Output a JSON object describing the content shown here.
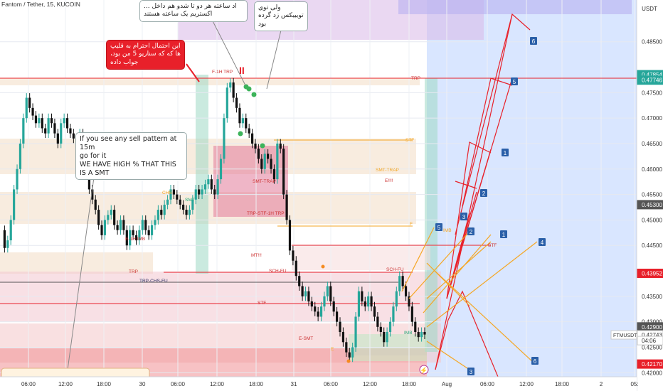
{
  "symbol_label": "Fantom / Tether, 15, KUCOIN",
  "callouts": {
    "top_left_partial": "... اد ساعته  هر دو تا شدو هم داخل اکستریم یک ساعته هستند",
    "top_right": "ولی توی تویبیکس زد گرده بود",
    "red_note": "این احتمال احترام به قلیپ ها که که سناریو 5 من بود، جواب داده",
    "smt_note_line1": "If you see any sell pattern at 15m",
    "smt_note_line2": "go for it",
    "smt_note_line3": "WE HAVE HIGH % THAT THIS IS A SMT"
  },
  "markers": {
    "double_bar": "II",
    "flash_icon": "⚡"
  },
  "currency": "USDT",
  "colors": {
    "bull": "#26a69a",
    "bear": "#111111",
    "red_line": "#e8202a",
    "orange_line": "#f5a623",
    "blue_bg": "#cfe0ff",
    "pink_zone": "#f3c6cf",
    "tan_zone": "#f2dcc4",
    "green_zone": "#9fd9c4",
    "label_blue": "#2a5fa8"
  },
  "chart_data": {
    "type": "line",
    "title": "Fantom / Tether, 15, KUCOIN",
    "xlabel": "",
    "ylabel": "",
    "ylim": [
      0.4192,
      0.4932
    ],
    "x_tick_labels": [
      "06:00",
      "12:00",
      "18:00",
      "30",
      "06:00",
      "12:00",
      "18:00",
      "31",
      "06:00",
      "12:00",
      "18:00",
      "Aug",
      "06:00",
      "12:00",
      "18:00",
      "2",
      "05:"
    ],
    "y_tick_labels": [
      "0.48500",
      "0.47500",
      "0.47000",
      "0.46500",
      "0.46000",
      "0.45500",
      "0.45000",
      "0.44500",
      "0.43500",
      "0.43000",
      "0.42500",
      "0.42000"
    ],
    "price_badges": [
      {
        "label": "0.47854",
        "value": 0.47854,
        "color": "#26a69a"
      },
      {
        "label": "0.47746",
        "value": 0.47746,
        "color": "#26a69a"
      },
      {
        "label": "0.45300",
        "value": 0.453,
        "color": "#555555"
      },
      {
        "label": "0.43952",
        "value": 0.43952,
        "color": "#e8202a"
      },
      {
        "label": "0.42900",
        "value": 0.429,
        "color": "#555555"
      },
      {
        "label": "0.42743",
        "value": 0.42743,
        "color": "#ffffff"
      },
      {
        "label": "04:06",
        "value": 0.4263,
        "color": "#ffffff"
      },
      {
        "label": "0.42170",
        "value": 0.4217,
        "color": "#e8202a"
      }
    ],
    "symbol_badge": "FTMUSDT",
    "series": [
      {
        "values": [
          0.448,
          0.4445,
          0.446,
          0.45,
          0.456,
          0.46,
          0.465,
          0.47,
          0.474,
          0.472,
          0.4705,
          0.469,
          0.47,
          0.468,
          0.467,
          0.47,
          0.469,
          0.467,
          0.465,
          0.469,
          0.47,
          0.468,
          0.467,
          0.466,
          0.465,
          0.467,
          0.464,
          0.46,
          0.456,
          0.454,
          0.452,
          0.449,
          0.447,
          0.45,
          0.451,
          0.452,
          0.449,
          0.448,
          0.45,
          0.448,
          0.445,
          0.448,
          0.447,
          0.446,
          0.448,
          0.45,
          0.448,
          0.447,
          0.449,
          0.45,
          0.452,
          0.451,
          0.453,
          0.454,
          0.456,
          0.455,
          0.454,
          0.453,
          0.452,
          0.451,
          0.452,
          0.454,
          0.456,
          0.455,
          0.456,
          0.457,
          0.458,
          0.456,
          0.455,
          0.458,
          0.462,
          0.47,
          0.476,
          0.477,
          0.474,
          0.472,
          0.469,
          0.47,
          0.468,
          0.467,
          0.465,
          0.464,
          0.462,
          0.46,
          0.463,
          0.462,
          0.46,
          0.458,
          0.465,
          0.464,
          0.455,
          0.45,
          0.444,
          0.442,
          0.439,
          0.437,
          0.435,
          0.436,
          0.434,
          0.433,
          0.432,
          0.431,
          0.433,
          0.435,
          0.437,
          0.434,
          0.432,
          0.43,
          0.428,
          0.426,
          0.424,
          0.423,
          0.425,
          0.431,
          0.436,
          0.434,
          0.433,
          0.435,
          0.433,
          0.431,
          0.429,
          0.428,
          0.426,
          0.428,
          0.43,
          0.433,
          0.436,
          0.439,
          0.437,
          0.435,
          0.433,
          0.43,
          0.428,
          0.427,
          0.428,
          0.4275
        ]
      }
    ],
    "zone_labels": [
      "F-1H TRP",
      "TRP",
      "STF",
      "SMT-TRAP",
      "E!!!!",
      "CHS",
      "SMT",
      "TRP-STF-1H TRP",
      "SMT-TRAP",
      "MT!!!",
      "SCH-FU",
      "TRP-CHS-FU",
      "STF",
      "E-SMT",
      "IMB",
      "F",
      "E",
      "IMB",
      "STF",
      "E-1H IMB",
      "TRP",
      "SCH-FU"
    ],
    "projection_labels": [
      "6",
      "5",
      "1",
      "2",
      "3",
      "5",
      "2",
      "1",
      "4",
      "6",
      "3"
    ]
  }
}
